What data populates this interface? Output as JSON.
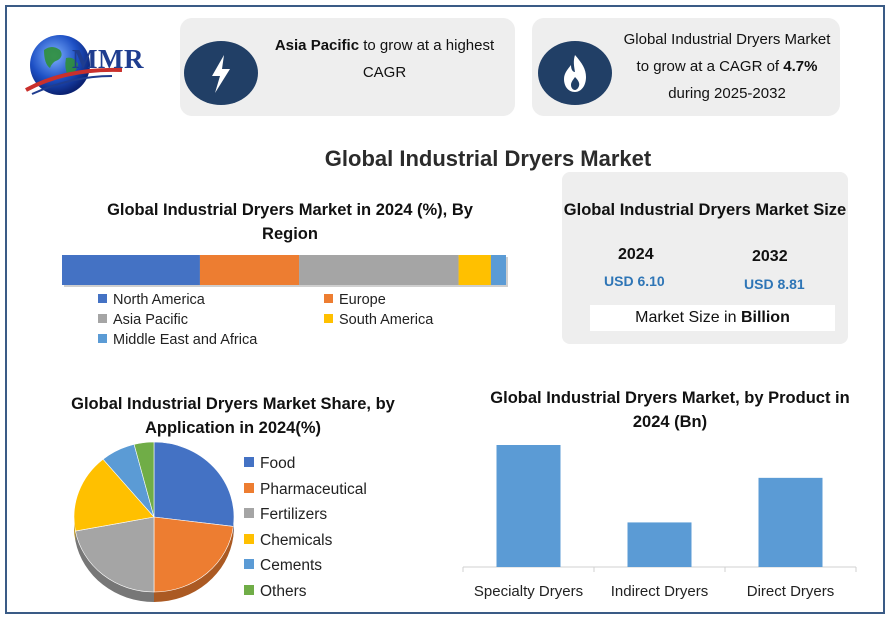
{
  "logo": {
    "text": "MMR",
    "icon": "globe-icon"
  },
  "highlights": [
    {
      "icon": "lightning-icon",
      "bold": "Asia Pacific",
      "text": " to grow at a highest CAGR"
    },
    {
      "icon": "flame-icon",
      "prefix": "Global Industrial Dryers Market to grow at a CAGR of ",
      "bold": "4.7%",
      "suffix": " during 2025-2032"
    }
  ],
  "main_title": "Global Industrial Dryers Market",
  "market_size": {
    "title": "Global Industrial Dryers Market Size",
    "years": [
      {
        "year": "2024",
        "value": "USD 6.10"
      },
      {
        "year": "2032",
        "value": "USD 8.81"
      }
    ],
    "unit_prefix": "Market Size in ",
    "unit_bold": "Billion"
  },
  "colors": {
    "north_america": "#4472c4",
    "europe": "#ed7d31",
    "asia_pacific": "#a5a5a5",
    "south_america": "#ffc000",
    "mea": "#5b9bd5",
    "others": "#70ad47",
    "bar": "#5b9bd5"
  },
  "chart_data": [
    {
      "type": "bar",
      "orientation": "horizontal-stacked",
      "title": "Global Industrial Dryers Market in 2024 (%), By Region",
      "categories": [
        "North America",
        "Europe",
        "Asia Pacific",
        "South America",
        "Middle East and Africa"
      ],
      "values": [
        32,
        23,
        37,
        7.5,
        3.5
      ],
      "unit": "%",
      "legend": "bottom"
    },
    {
      "type": "pie",
      "title": "Global Industrial Dryers Market Share, by Application in 2024(%)",
      "categories": [
        "Food",
        "Pharmaceutical",
        "Fertilizers",
        "Chemicals",
        "Cements",
        "Others"
      ],
      "values": [
        27,
        23,
        22,
        17,
        7,
        4
      ],
      "unit": "%",
      "legend": "right"
    },
    {
      "type": "bar",
      "title": "Global Industrial Dryers Market, by Product in 2024 (Bn)",
      "categories": [
        "Specialty Dryers",
        "Indirect Dryers",
        "Direct Dryers"
      ],
      "values": [
        2.6,
        0.95,
        1.9
      ],
      "ylim": [
        0,
        2.6
      ],
      "grid": false,
      "legend": "none"
    }
  ]
}
